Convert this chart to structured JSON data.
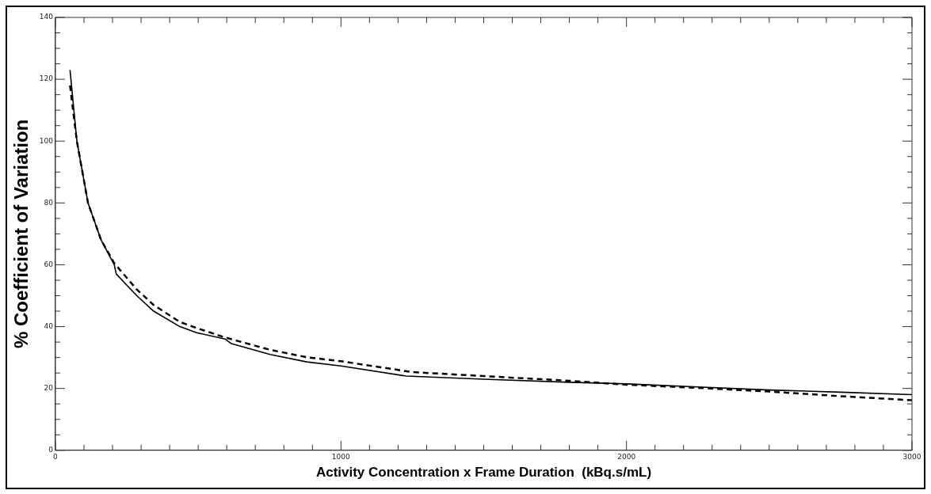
{
  "chart_data": {
    "type": "line",
    "xlabel": "Activity Concentration x Frame Duration  (kBq.s/mL)",
    "ylabel": "% Coefficient of Variation",
    "xlim": [
      0,
      3000
    ],
    "ylim": [
      0,
      140
    ],
    "xticks": [
      0,
      {
        "value": 100,
        "label": null
      },
      {
        "value": 200,
        "label": null
      },
      {
        "value": 300,
        "label": null
      },
      {
        "value": 400,
        "label": null
      },
      {
        "value": 500,
        "label": null
      },
      {
        "value": 600,
        "label": null
      },
      {
        "value": 700,
        "label": null
      },
      {
        "value": 800,
        "label": null
      },
      {
        "value": 900,
        "label": null
      },
      1000,
      {
        "value": 1100,
        "label": null
      },
      {
        "value": 1200,
        "label": null
      },
      {
        "value": 1300,
        "label": null
      },
      {
        "value": 1400,
        "label": null
      },
      {
        "value": 1500,
        "label": null
      },
      {
        "value": 1600,
        "label": null
      },
      {
        "value": 1700,
        "label": null
      },
      {
        "value": 1800,
        "label": null
      },
      {
        "value": 1900,
        "label": null
      },
      2000,
      {
        "value": 2100,
        "label": null
      },
      {
        "value": 2200,
        "label": null
      },
      {
        "value": 2300,
        "label": null
      },
      {
        "value": 2400,
        "label": null
      },
      {
        "value": 2500,
        "label": null
      },
      {
        "value": 2600,
        "label": null
      },
      {
        "value": 2700,
        "label": null
      },
      {
        "value": 2800,
        "label": null
      },
      {
        "value": 2900,
        "label": null
      },
      3000
    ],
    "yticks": [
      0,
      {
        "value": 5,
        "label": null
      },
      {
        "value": 10,
        "label": null
      },
      {
        "value": 15,
        "label": null
      },
      20,
      {
        "value": 25,
        "label": null
      },
      {
        "value": 30,
        "label": null
      },
      {
        "value": 35,
        "label": null
      },
      40,
      {
        "value": 45,
        "label": null
      },
      {
        "value": 50,
        "label": null
      },
      {
        "value": 55,
        "label": null
      },
      60,
      {
        "value": 65,
        "label": null
      },
      {
        "value": 70,
        "label": null
      },
      {
        "value": 75,
        "label": null
      },
      80,
      {
        "value": 85,
        "label": null
      },
      {
        "value": 90,
        "label": null
      },
      {
        "value": 95,
        "label": null
      },
      100,
      {
        "value": 105,
        "label": null
      },
      {
        "value": 110,
        "label": null
      },
      {
        "value": 115,
        "label": null
      },
      120,
      {
        "value": 125,
        "label": null
      },
      {
        "value": 130,
        "label": null
      },
      {
        "value": 135,
        "label": null
      },
      140
    ],
    "grid": false,
    "legend": false,
    "marker": "none",
    "series": [
      {
        "color": "#000000",
        "line_style": "solid",
        "x": [
          51,
          75,
          114,
          160,
          206,
          213,
          285,
          344,
          436,
          496,
          594,
          616,
          752,
          880,
          1000,
          1229,
          1500,
          1800,
          2000,
          2250,
          2500,
          2750,
          3000
        ],
        "values": [
          123,
          100,
          80,
          68,
          60,
          57,
          50,
          45,
          40,
          38,
          36,
          34.5,
          31,
          28.6,
          27.3,
          24,
          23,
          22,
          21.5,
          20.5,
          19.5,
          18.8,
          18
        ]
      },
      {
        "color": "#000000",
        "line_style": "dashed",
        "x": [
          51,
          75,
          114,
          160,
          206,
          285,
          344,
          436,
          496,
          594,
          752,
          880,
          1000,
          1250,
          1500,
          1800,
          2000,
          2250,
          2500,
          2750,
          3000
        ],
        "values": [
          118,
          100,
          80,
          68,
          60.5,
          52,
          47,
          41.5,
          39.5,
          36.5,
          32.5,
          30.1,
          28.8,
          25.3,
          24,
          22.5,
          21.2,
          20.2,
          19,
          17.5,
          16.2
        ]
      }
    ]
  }
}
